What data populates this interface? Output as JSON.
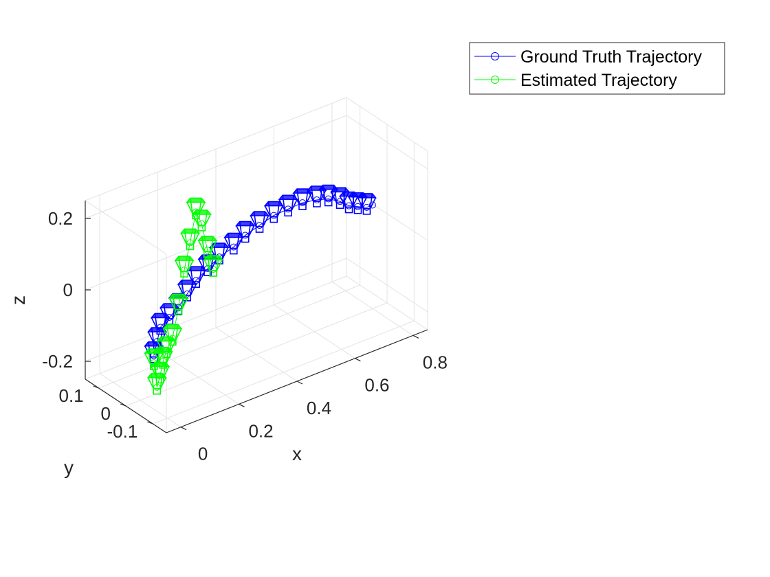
{
  "chart_data": {
    "type": "scatter",
    "projection": "3d",
    "xlabel": "x",
    "ylabel": "y",
    "zlabel": "z",
    "xlim": [
      -0.05,
      0.85
    ],
    "ylim": [
      -0.15,
      0.15
    ],
    "zlim": [
      -0.25,
      0.25
    ],
    "x_ticks": [
      0,
      0.2,
      0.4,
      0.6,
      0.8
    ],
    "x_tick_labels": [
      "0",
      "0.2",
      "0.4",
      "0.6",
      "0.8"
    ],
    "y_ticks": [
      -0.1,
      0,
      0.1
    ],
    "y_tick_labels": [
      "-0.1",
      "0",
      "0.1"
    ],
    "z_ticks": [
      -0.2,
      0,
      0.2
    ],
    "z_tick_labels": [
      "-0.2",
      "0",
      "0.2"
    ],
    "grid": true,
    "legend_position": "top-right",
    "series": [
      {
        "name": "Ground Truth Trajectory",
        "color": "#0000ff",
        "marker": "circle",
        "x": [
          0.0,
          0.03,
          0.06,
          0.1,
          0.14,
          0.18,
          0.22,
          0.26,
          0.3,
          0.34,
          0.38,
          0.42,
          0.46,
          0.5,
          0.54,
          0.58,
          0.62,
          0.66,
          0.7,
          0.74,
          0.78,
          0.8
        ],
        "y": [
          -0.05,
          -0.03,
          -0.01,
          0.0,
          0.01,
          0.02,
          0.03,
          0.03,
          0.03,
          0.02,
          0.02,
          0.01,
          0.0,
          -0.01,
          -0.02,
          -0.03,
          -0.03,
          -0.03,
          -0.02,
          -0.01,
          0.0,
          0.0
        ],
        "z": [
          -0.1,
          -0.08,
          -0.06,
          -0.05,
          -0.04,
          -0.02,
          0.0,
          0.02,
          0.04,
          0.06,
          0.08,
          0.1,
          0.12,
          0.13,
          0.14,
          0.14,
          0.13,
          0.11,
          0.08,
          0.06,
          0.04,
          0.04
        ]
      },
      {
        "name": "Estimated Trajectory",
        "color": "#00ff00",
        "marker": "circle",
        "x": [
          0.0,
          0.02,
          0.04,
          0.06,
          0.09,
          0.12,
          0.15,
          0.17,
          0.19,
          0.21,
          0.23,
          0.25,
          0.27
        ],
        "y": [
          -0.05,
          -0.04,
          -0.03,
          -0.02,
          0.0,
          0.01,
          0.02,
          0.02,
          0.02,
          0.02,
          0.02,
          0.02,
          0.02
        ],
        "z": [
          -0.12,
          -0.2,
          -0.18,
          -0.15,
          -0.14,
          -0.12,
          -0.05,
          0.05,
          0.12,
          0.2,
          0.16,
          0.08,
          0.02
        ]
      }
    ],
    "camera_poses": [
      {
        "series": "Ground Truth Trajectory",
        "color": "#0000ff",
        "x": [
          0.0,
          0.03,
          0.06,
          0.1,
          0.14,
          0.18,
          0.22,
          0.26,
          0.3,
          0.34,
          0.38,
          0.42,
          0.46,
          0.5,
          0.54,
          0.58,
          0.62,
          0.66,
          0.7,
          0.74,
          0.78
        ],
        "y": [
          -0.05,
          -0.03,
          -0.01,
          0.0,
          0.01,
          0.02,
          0.03,
          0.03,
          0.03,
          0.02,
          0.02,
          0.01,
          0.0,
          -0.01,
          -0.02,
          -0.03,
          -0.03,
          -0.03,
          -0.02,
          -0.01,
          0.0
        ],
        "z": [
          -0.1,
          -0.08,
          -0.06,
          -0.05,
          -0.04,
          -0.02,
          0.0,
          0.02,
          0.04,
          0.06,
          0.08,
          0.1,
          0.12,
          0.13,
          0.14,
          0.14,
          0.13,
          0.11,
          0.08,
          0.06,
          0.04
        ]
      },
      {
        "series": "Estimated Trajectory",
        "color": "#00ff00",
        "x": [
          0.0,
          0.02,
          0.04,
          0.06,
          0.09,
          0.12,
          0.15,
          0.17,
          0.19,
          0.21,
          0.23,
          0.25,
          0.27
        ],
        "y": [
          -0.05,
          -0.04,
          -0.03,
          -0.02,
          0.0,
          0.01,
          0.02,
          0.02,
          0.02,
          0.02,
          0.02,
          0.02,
          0.02
        ],
        "z": [
          -0.12,
          -0.2,
          -0.18,
          -0.15,
          -0.14,
          -0.12,
          -0.05,
          0.05,
          0.12,
          0.2,
          0.16,
          0.08,
          0.02
        ]
      }
    ]
  }
}
